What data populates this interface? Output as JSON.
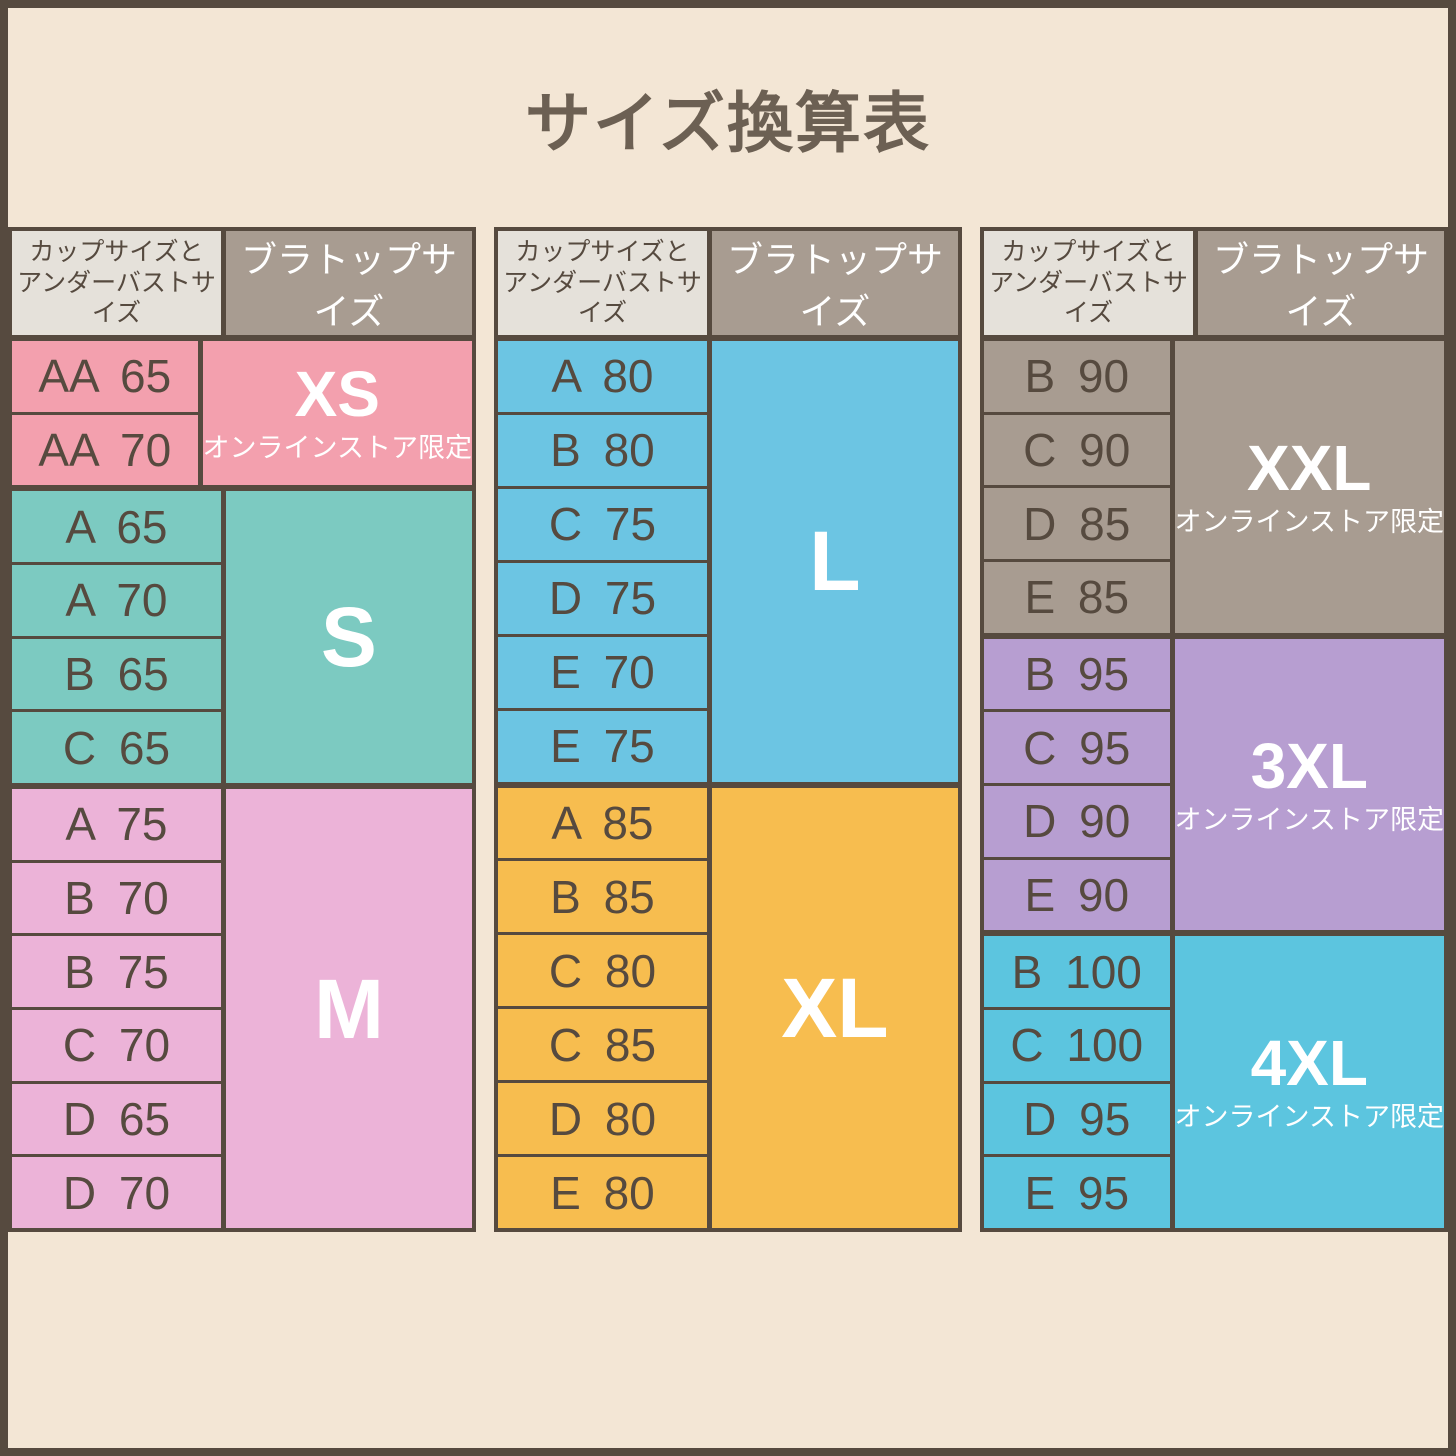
{
  "page": {
    "background_color": "#f3e6d5",
    "frame_color": "#564a3f",
    "title_color": "#6c6053",
    "row_text_color": "#564a3f"
  },
  "chart_data": {
    "type": "table",
    "title": "サイズ換算表",
    "column_headers": {
      "left_line1": "カップサイズと",
      "left_line2": "アンダーバストサイズ",
      "right": "ブラトップサイズ"
    },
    "header_colors": {
      "left_bg": "#e5e1da",
      "left_text": "#564a3f",
      "right_bg": "#a89c91",
      "right_text": "#ffffff"
    },
    "online_note": "オンラインストア限定",
    "tables": [
      {
        "sections": [
          {
            "size": "XS",
            "online_only": true,
            "color": "#f3a0ae",
            "rows": [
              "AA 65",
              "AA 70"
            ]
          },
          {
            "size": "S",
            "online_only": false,
            "color": "#7ccac1",
            "rows": [
              "A 65",
              "A 70",
              "B 65",
              "C 65"
            ]
          },
          {
            "size": "M",
            "online_only": false,
            "color": "#ecb3d8",
            "rows": [
              "A 75",
              "B 70",
              "B 75",
              "C 70",
              "D 65",
              "D 70"
            ]
          }
        ]
      },
      {
        "sections": [
          {
            "size": "L",
            "online_only": false,
            "color": "#6cc5e3",
            "rows": [
              "A 80",
              "B 80",
              "C 75",
              "D 75",
              "E 70",
              "E 75"
            ]
          },
          {
            "size": "XL",
            "online_only": false,
            "color": "#f7bd4f",
            "rows": [
              "A 85",
              "B 85",
              "C 80",
              "C 85",
              "D 80",
              "E 80"
            ]
          }
        ]
      },
      {
        "sections": [
          {
            "size": "XXL",
            "online_only": true,
            "color": "#a89c91",
            "rows": [
              "B 90",
              "C 90",
              "D 85",
              "E 85"
            ]
          },
          {
            "size": "3XL",
            "online_only": true,
            "color": "#b79ed1",
            "rows": [
              "B 95",
              "C 95",
              "D 90",
              "E 90"
            ]
          },
          {
            "size": "4XL",
            "online_only": true,
            "color": "#5cc5df",
            "rows": [
              "B 100",
              "C 100",
              "D 95",
              "E 95"
            ]
          }
        ]
      }
    ]
  }
}
